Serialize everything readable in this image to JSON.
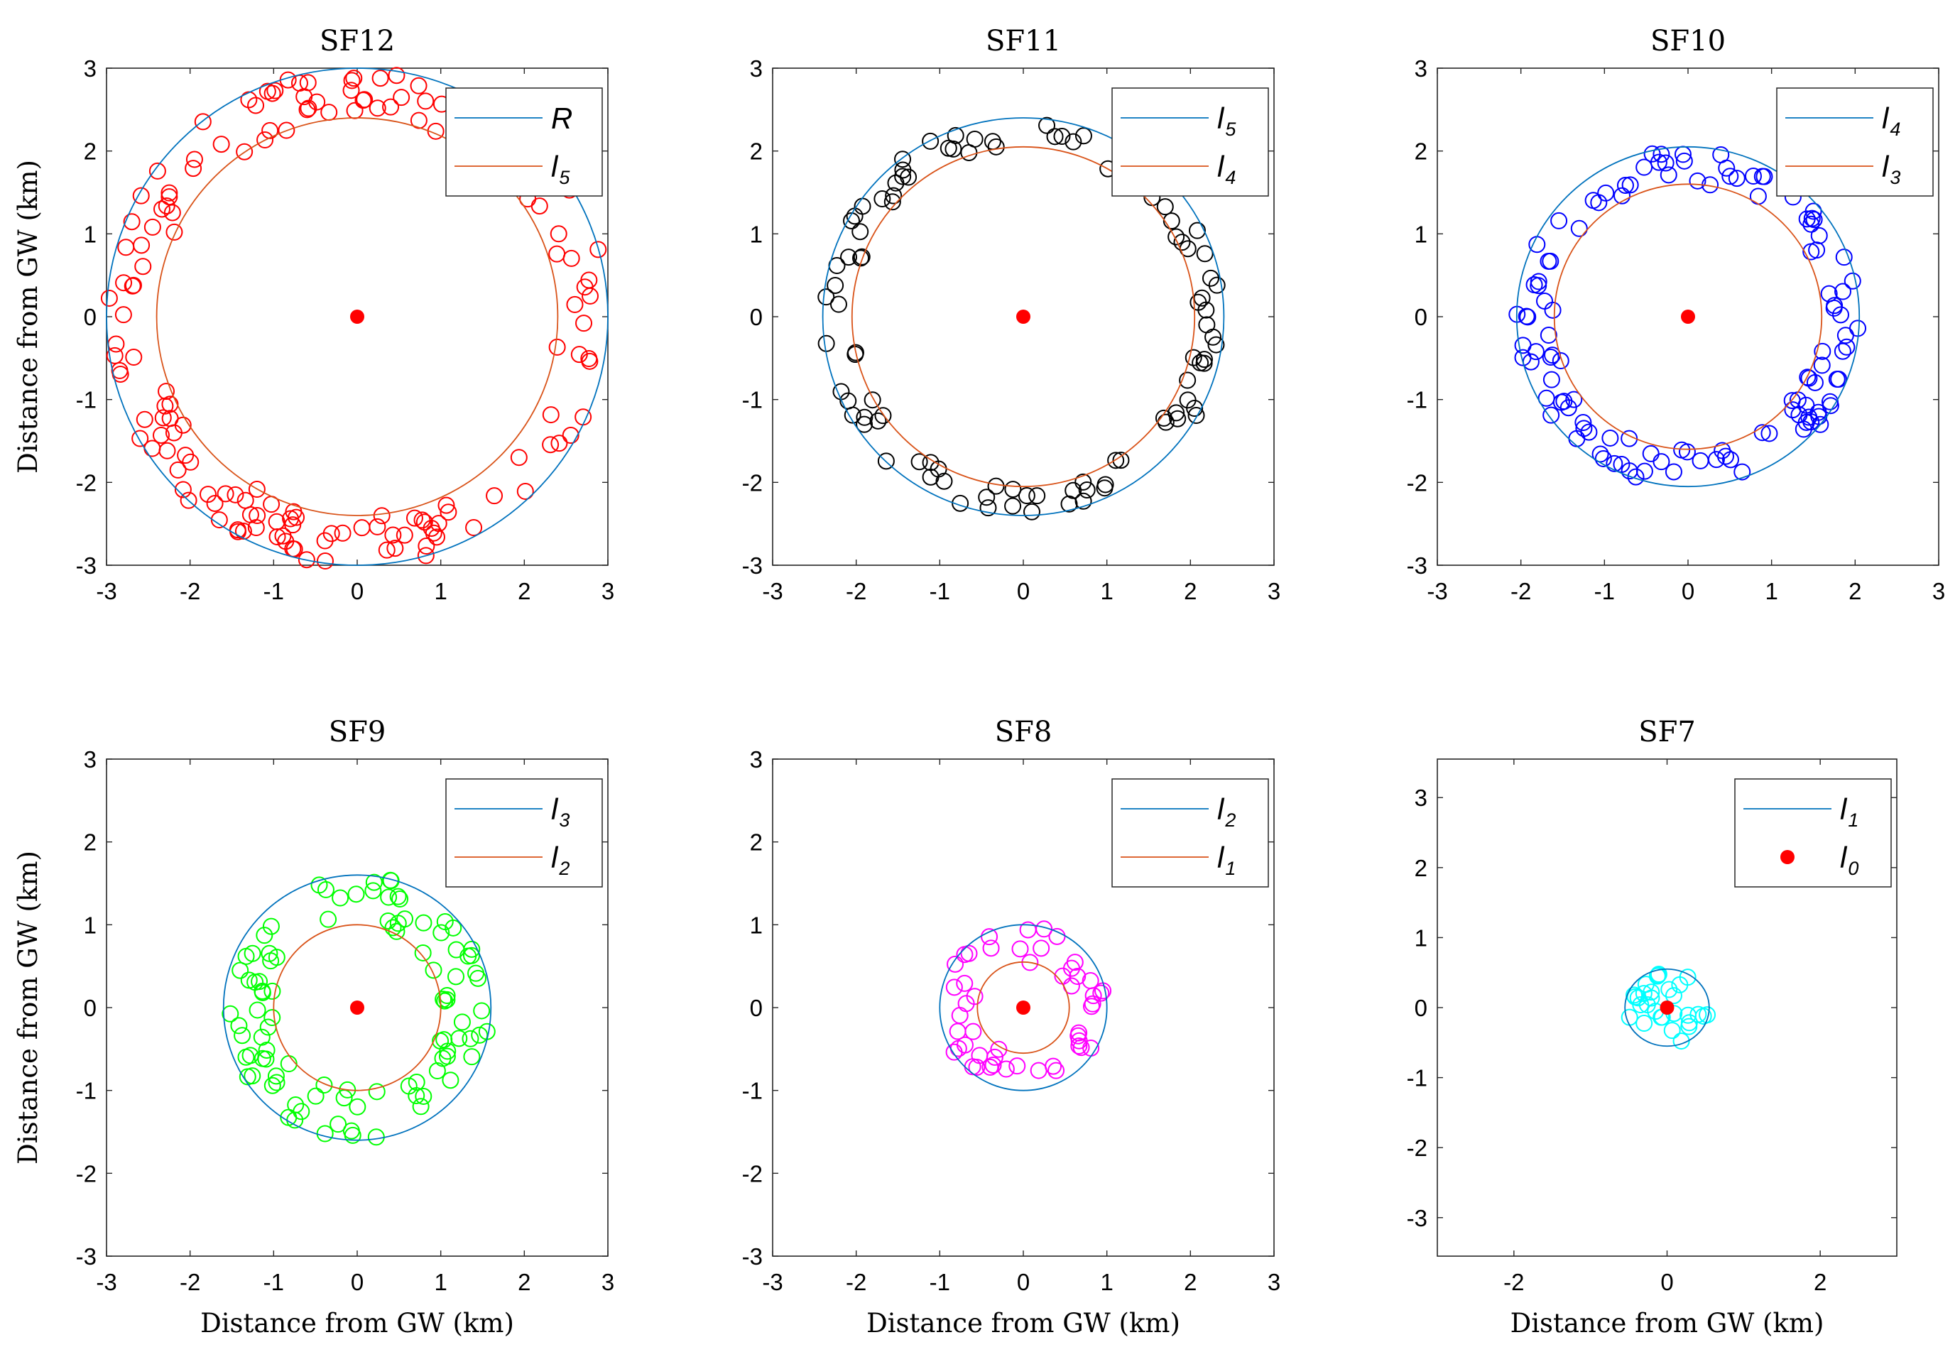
{
  "chart_data": [
    {
      "type": "scatter",
      "title": "SF12",
      "ylabel": "Distance from GW (km)",
      "xlabel": "",
      "xlim": [
        -3,
        3
      ],
      "ylim": [
        -3,
        3
      ],
      "xticks": [
        "-3",
        "-2",
        "-1",
        "0",
        "1",
        "2",
        "3"
      ],
      "yticks": [
        "-3",
        "-2",
        "-1",
        "0",
        "1",
        "2",
        "3"
      ],
      "grid": false,
      "legend_position": "top-right",
      "marker_color": "#ff0000",
      "outer_radius": 3.0,
      "inner_radius": 2.4,
      "points_count": 160,
      "legend": [
        {
          "name": "R",
          "sub": "",
          "style": "line",
          "color": "#0072bd"
        },
        {
          "name": "l",
          "sub": "5",
          "style": "line",
          "color": "#d95319"
        }
      ],
      "series": [
        {
          "name": "outer boundary",
          "type": "circle",
          "r": 3.0,
          "color": "#0072bd"
        },
        {
          "name": "inner boundary",
          "type": "circle",
          "r": 2.4,
          "color": "#d95319"
        },
        {
          "name": "gateway",
          "type": "point",
          "x": 0,
          "y": 0,
          "color": "#ff0000"
        }
      ]
    },
    {
      "type": "scatter",
      "title": "SF11",
      "ylabel": "",
      "xlabel": "",
      "xlim": [
        -3,
        3
      ],
      "ylim": [
        -3,
        3
      ],
      "xticks": [
        "-3",
        "-2",
        "-1",
        "0",
        "1",
        "2",
        "3"
      ],
      "yticks": [
        "-3",
        "-2",
        "-1",
        "0",
        "1",
        "2",
        "3"
      ],
      "grid": false,
      "legend_position": "top-right",
      "marker_color": "#000000",
      "outer_radius": 2.4,
      "inner_radius": 2.05,
      "points_count": 100,
      "legend": [
        {
          "name": "l",
          "sub": "5",
          "style": "line",
          "color": "#0072bd"
        },
        {
          "name": "l",
          "sub": "4",
          "style": "line",
          "color": "#d95319"
        }
      ],
      "series": [
        {
          "name": "outer boundary",
          "type": "circle",
          "r": 2.4,
          "color": "#0072bd"
        },
        {
          "name": "inner boundary",
          "type": "circle",
          "r": 2.05,
          "color": "#d95319"
        },
        {
          "name": "gateway",
          "type": "point",
          "x": 0,
          "y": 0,
          "color": "#ff0000"
        }
      ]
    },
    {
      "type": "scatter",
      "title": "SF10",
      "ylabel": "",
      "xlabel": "",
      "xlim": [
        -3,
        3
      ],
      "ylim": [
        -3,
        3
      ],
      "xticks": [
        "-3",
        "-2",
        "-1",
        "0",
        "1",
        "2",
        "3"
      ],
      "yticks": [
        "-3",
        "-2",
        "-1",
        "0",
        "1",
        "2",
        "3"
      ],
      "grid": false,
      "legend_position": "top-right",
      "marker_color": "#0000ff",
      "outer_radius": 2.05,
      "inner_radius": 1.6,
      "points_count": 120,
      "legend": [
        {
          "name": "l",
          "sub": "4",
          "style": "line",
          "color": "#0072bd"
        },
        {
          "name": "l",
          "sub": "3",
          "style": "line",
          "color": "#d95319"
        }
      ],
      "series": [
        {
          "name": "outer boundary",
          "type": "circle",
          "r": 2.05,
          "color": "#0072bd"
        },
        {
          "name": "inner boundary",
          "type": "circle",
          "r": 1.6,
          "color": "#d95319"
        },
        {
          "name": "gateway",
          "type": "point",
          "x": 0,
          "y": 0,
          "color": "#ff0000"
        }
      ]
    },
    {
      "type": "scatter",
      "title": "SF9",
      "ylabel": "Distance from GW (km)",
      "xlabel": "Distance from GW (km)",
      "xlim": [
        -3,
        3
      ],
      "ylim": [
        -3,
        3
      ],
      "xticks": [
        "-3",
        "-2",
        "-1",
        "0",
        "1",
        "2",
        "3"
      ],
      "yticks": [
        "-3",
        "-2",
        "-1",
        "0",
        "1",
        "2",
        "3"
      ],
      "grid": false,
      "legend_position": "top-right",
      "marker_color": "#00ff00",
      "outer_radius": 1.6,
      "inner_radius": 1.0,
      "points_count": 100,
      "legend": [
        {
          "name": "l",
          "sub": "3",
          "style": "line",
          "color": "#0072bd"
        },
        {
          "name": "l",
          "sub": "2",
          "style": "line",
          "color": "#d95319"
        }
      ],
      "series": [
        {
          "name": "outer boundary",
          "type": "circle",
          "r": 1.6,
          "color": "#0072bd"
        },
        {
          "name": "inner boundary",
          "type": "circle",
          "r": 1.0,
          "color": "#d95319"
        },
        {
          "name": "gateway",
          "type": "point",
          "x": 0,
          "y": 0,
          "color": "#ff0000"
        }
      ]
    },
    {
      "type": "scatter",
      "title": "SF8",
      "ylabel": "",
      "xlabel": "Distance from GW (km)",
      "xlim": [
        -3,
        3
      ],
      "ylim": [
        -3,
        3
      ],
      "xticks": [
        "-3",
        "-2",
        "-1",
        "0",
        "1",
        "2",
        "3"
      ],
      "yticks": [
        "-3",
        "-2",
        "-1",
        "0",
        "1",
        "2",
        "3"
      ],
      "grid": false,
      "legend_position": "top-right",
      "marker_color": "#ff00ff",
      "outer_radius": 1.0,
      "inner_radius": 0.55,
      "points_count": 50,
      "legend": [
        {
          "name": "l",
          "sub": "2",
          "style": "line",
          "color": "#0072bd"
        },
        {
          "name": "l",
          "sub": "1",
          "style": "line",
          "color": "#d95319"
        }
      ],
      "series": [
        {
          "name": "outer boundary",
          "type": "circle",
          "r": 1.0,
          "color": "#0072bd"
        },
        {
          "name": "inner boundary",
          "type": "circle",
          "r": 0.55,
          "color": "#d95319"
        },
        {
          "name": "gateway",
          "type": "point",
          "x": 0,
          "y": 0,
          "color": "#ff0000"
        }
      ]
    },
    {
      "type": "scatter",
      "title": "SF7",
      "ylabel": "",
      "xlabel": "Distance from GW (km)",
      "xlim": [
        -3,
        3
      ],
      "ylim": [
        -3.55,
        3.55
      ],
      "xticks": [
        "-2",
        "0",
        "2"
      ],
      "yticks": [
        "-3",
        "-2",
        "-1",
        "0",
        "1",
        "2",
        "3"
      ],
      "grid": false,
      "legend_position": "top-right",
      "marker_color": "#00ffff",
      "outer_radius": 0.55,
      "inner_radius": 0,
      "points_count": 30,
      "legend": [
        {
          "name": "l",
          "sub": "1",
          "style": "line",
          "color": "#0072bd"
        },
        {
          "name": "l",
          "sub": "0",
          "style": "dot",
          "color": "#ff0000"
        }
      ],
      "series": [
        {
          "name": "outer boundary",
          "type": "circle",
          "r": 0.55,
          "color": "#0072bd"
        },
        {
          "name": "gateway",
          "type": "point",
          "x": 0,
          "y": 0,
          "color": "#ff0000"
        }
      ]
    }
  ]
}
